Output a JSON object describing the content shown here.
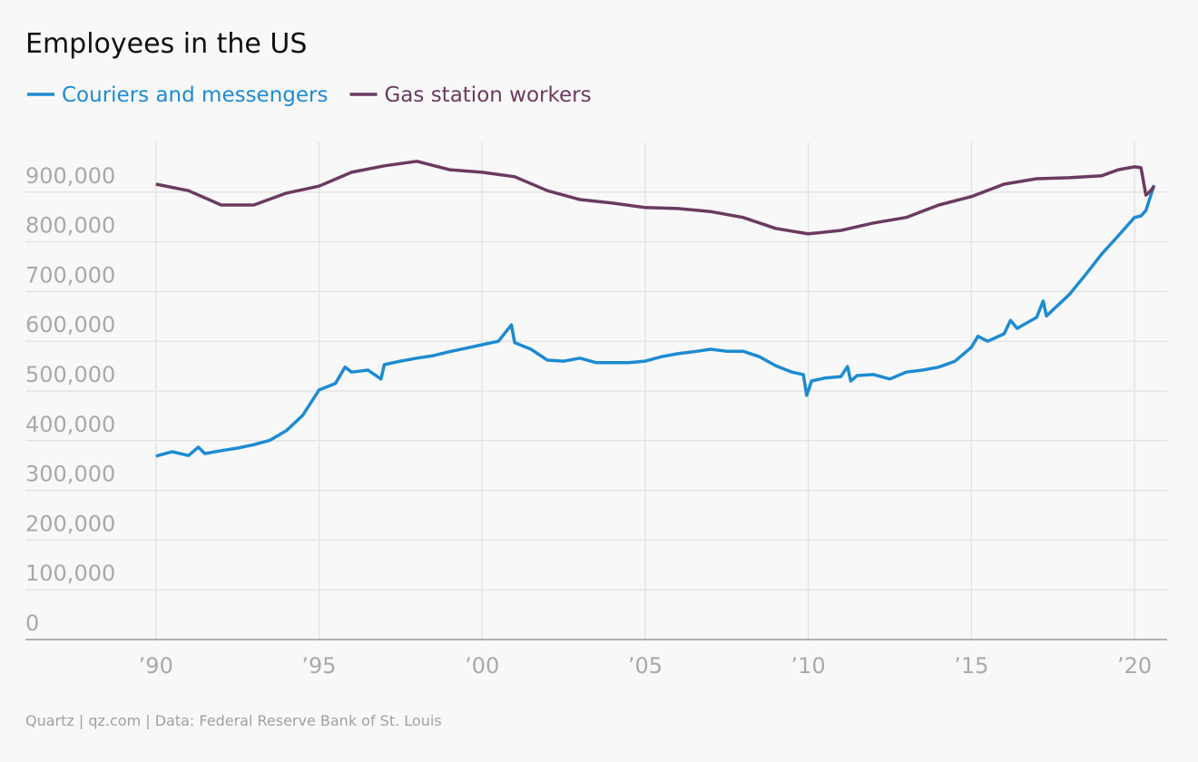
{
  "chart_data": {
    "type": "line",
    "title": "Employees in the US",
    "source": "Quartz | qz.com | Data: Federal Reserve Bank of St. Louis",
    "xlim": [
      1986,
      2021
    ],
    "xticks": [
      {
        "value": 1990,
        "label": "’90"
      },
      {
        "value": 1995,
        "label": "’95"
      },
      {
        "value": 2000,
        "label": "’00"
      },
      {
        "value": 2005,
        "label": "’05"
      },
      {
        "value": 2010,
        "label": "’10"
      },
      {
        "value": 2015,
        "label": "’15"
      },
      {
        "value": 2020,
        "label": "’20"
      }
    ],
    "ylim": [
      0,
      1000000
    ],
    "yticks": [
      0,
      {
        "value": 100000,
        "label": "100,000"
      },
      {
        "value": 200000,
        "label": "200,000"
      },
      {
        "value": 300000,
        "label": "300,000"
      },
      {
        "value": 400000,
        "label": "400,000"
      },
      {
        "value": 500000,
        "label": "500,000"
      },
      {
        "value": 600000,
        "label": "600,000"
      },
      {
        "value": 700000,
        "label": "700,000"
      },
      {
        "value": 800000,
        "label": "800,000"
      },
      {
        "value": 900000,
        "label": "900,000"
      }
    ],
    "grid": true,
    "series": [
      {
        "name": "Couriers and messengers",
        "color": "#1d8bd1",
        "x": [
          1990,
          1990.5,
          1991,
          1991.3,
          1991.5,
          1992,
          1992.5,
          1993,
          1993.5,
          1994,
          1994.5,
          1995,
          1995.5,
          1995.8,
          1996,
          1996.5,
          1996.9,
          1997,
          1997.5,
          1998,
          1998.5,
          1999,
          1999.5,
          2000,
          2000.5,
          2000.9,
          2001,
          2001.5,
          2002,
          2002.5,
          2003,
          2003.5,
          2004,
          2004.5,
          2005,
          2005.5,
          2006,
          2006.5,
          2007,
          2007.5,
          2008,
          2008.5,
          2009,
          2009.5,
          2009.85,
          2009.95,
          2010.1,
          2010.5,
          2011,
          2011.2,
          2011.3,
          2011.5,
          2012,
          2012.5,
          2013,
          2013.5,
          2014,
          2014.5,
          2015,
          2015.2,
          2015.5,
          2016,
          2016.2,
          2016.4,
          2017,
          2017.2,
          2017.3,
          2018,
          2018.5,
          2019,
          2019.5,
          2020,
          2020.2,
          2020.35,
          2020.6
        ],
        "values": [
          369000,
          378000,
          370000,
          387000,
          374000,
          380000,
          385000,
          392000,
          401000,
          420000,
          451000,
          502000,
          515000,
          548000,
          538000,
          542000,
          524000,
          553000,
          560000,
          566000,
          571000,
          579000,
          586000,
          593000,
          600000,
          633000,
          597000,
          584000,
          562000,
          560000,
          566000,
          557000,
          557000,
          557000,
          560000,
          569000,
          575000,
          579000,
          584000,
          580000,
          580000,
          569000,
          551000,
          538000,
          533000,
          491000,
          520000,
          526000,
          529000,
          549000,
          520000,
          531000,
          533000,
          524000,
          538000,
          542000,
          548000,
          560000,
          588000,
          610000,
          600000,
          615000,
          642000,
          626000,
          648000,
          681000,
          651000,
          694000,
          734000,
          776000,
          812000,
          849000,
          852000,
          863000,
          914000
        ]
      },
      {
        "name": "Gas station workers",
        "color": "#6b3a5f",
        "x": [
          1990,
          1991,
          1992,
          1993,
          1994,
          1995,
          1996,
          1997,
          1998,
          1999,
          2000,
          2001,
          2002,
          2003,
          2004,
          2005,
          2006,
          2007,
          2008,
          2009,
          2010,
          2011,
          2012,
          2013,
          2014,
          2015,
          2016,
          2017,
          2018,
          2019,
          2019.5,
          2020,
          2020.2,
          2020.35,
          2020.5,
          2020.6
        ],
        "values": [
          916000,
          903000,
          874000,
          874000,
          898000,
          912000,
          940000,
          953000,
          962000,
          945000,
          940000,
          931000,
          903000,
          885000,
          878000,
          869000,
          867000,
          861000,
          849000,
          827000,
          816000,
          823000,
          838000,
          849000,
          874000,
          891000,
          916000,
          927000,
          929000,
          933000,
          945000,
          951000,
          949000,
          894000,
          903000,
          912000
        ]
      }
    ]
  }
}
